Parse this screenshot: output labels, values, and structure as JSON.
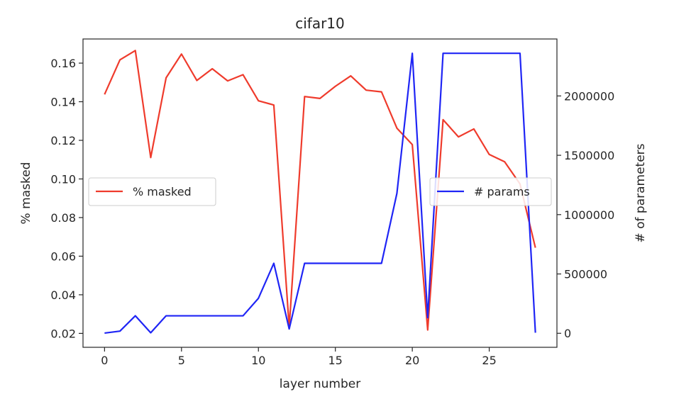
{
  "chart_data": {
    "type": "line",
    "title": "cifar10",
    "xlabel": "layer number",
    "ylabel_left": "% masked",
    "ylabel_right": "# of parameters",
    "xlim": [
      -1.4,
      29.4
    ],
    "ylim_left": [
      0.0128,
      0.1725
    ],
    "ylim_right": [
      -118000,
      2480000
    ],
    "x_ticks": [
      0,
      5,
      10,
      15,
      20,
      25
    ],
    "y_ticks_left": [
      0.02,
      0.04,
      0.06,
      0.08,
      0.1,
      0.12,
      0.14,
      0.16
    ],
    "y_ticks_left_labels": [
      "0.02",
      "0.04",
      "0.06",
      "0.08",
      "0.10",
      "0.12",
      "0.14",
      "0.16"
    ],
    "y_ticks_right": [
      0,
      500000,
      1000000,
      1500000,
      2000000
    ],
    "y_ticks_right_labels": [
      "0",
      "500000",
      "1000000",
      "1500000",
      "2000000"
    ],
    "grid": false,
    "x": [
      0,
      1,
      2,
      3,
      4,
      5,
      6,
      7,
      8,
      9,
      10,
      11,
      12,
      13,
      14,
      15,
      16,
      17,
      18,
      19,
      20,
      21,
      22,
      23,
      24,
      25,
      26,
      27,
      28
    ],
    "series": [
      {
        "name": "% masked",
        "axis": "left",
        "color": "#ef3b2c",
        "values": [
          0.1438,
          0.1617,
          0.1665,
          0.1111,
          0.1524,
          0.1647,
          0.151,
          0.1571,
          0.1508,
          0.154,
          0.1405,
          0.1383,
          0.0232,
          0.1427,
          0.1417,
          0.148,
          0.1534,
          0.146,
          0.1451,
          0.1263,
          0.1178,
          0.0218,
          0.1307,
          0.1218,
          0.1259,
          0.1127,
          0.1089,
          0.0974,
          0.0644
        ]
      },
      {
        "name": "# params",
        "axis": "right",
        "color": "#1f25f5",
        "values": [
          1728,
          18432,
          147456,
          4608,
          147456,
          147456,
          147456,
          147456,
          147456,
          147456,
          294912,
          589824,
          36864,
          589824,
          589824,
          589824,
          589824,
          589824,
          589824,
          1179648,
          2359296,
          131072,
          2359296,
          2359296,
          2359296,
          2359296,
          2359296,
          2359296,
          5120
        ]
      }
    ],
    "legends": [
      {
        "label": "% masked",
        "placement": "center-left"
      },
      {
        "label": "# params",
        "placement": "center-right"
      }
    ]
  }
}
